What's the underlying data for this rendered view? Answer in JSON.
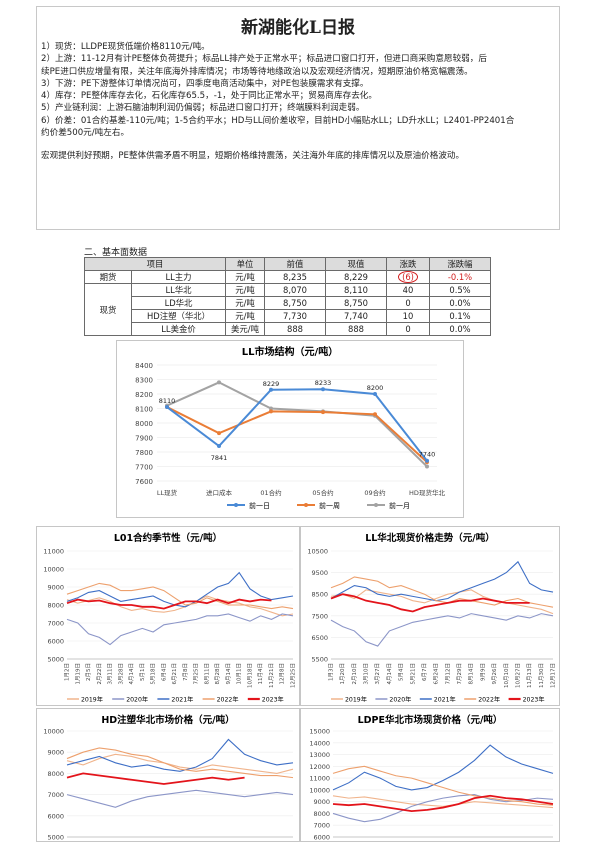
{
  "report": {
    "title": "新湖能化L日报",
    "lines": [
      "1）现货：LLDPE现货低端价格8110元/吨。",
      "2）上游：11-12月有计PE整体负荷提升；标品LL排产处于正常水平；标品进口窗口打开，但进口商采购意愿较弱，后",
      "续PE进口供应增量有限，关注年底海外排库情况；市场等待地缘政治以及宏观经济情况，短期原油价格宽幅震荡。",
      "3）下游：PE下游整体订单情况尚可，四季度电商活动集中，对PE包装膜需求有支撑。",
      "4）库存：PE整体库存去化，石化库存65.5，-1，处于同比正常水平；贸易商库存去化。",
      "5）产业链利润：上游石脑油制利润仍偏弱；标品进口窗口打开；终端膜料利润走弱。",
      "6）价差：01合约基差-110元/吨；1-5合约平水；HD与LL间价差收窄，目前HD小幅贴水LL；LD升水LL；L2401-PP2401合",
      "约价差500元/吨左右。"
    ],
    "summary": "宏观提供利好预期，PE整体供需矛盾不明显，短期价格维持震荡，关注海外年底的排库情况以及原油价格波动。"
  },
  "basic": {
    "section_title": "二、基本面数据",
    "headers": [
      "项目",
      "单位",
      "前值",
      "现值",
      "涨跌",
      "涨跌幅"
    ],
    "futures_label": "期货",
    "spot_label": "现货",
    "rows": [
      {
        "item": "LL主力",
        "unit": "元/吨",
        "prev": "8,235",
        "cur": "8,229",
        "chg": "(6)",
        "pct": "-0.1%"
      },
      {
        "item": "LL华北",
        "unit": "元/吨",
        "prev": "8,070",
        "cur": "8,110",
        "chg": "40",
        "pct": "0.5%"
      },
      {
        "item": "LD华北",
        "unit": "元/吨",
        "prev": "8,750",
        "cur": "8,750",
        "chg": "0",
        "pct": "0.0%"
      },
      {
        "item": "HD注塑（华北）",
        "unit": "元/吨",
        "prev": "7,730",
        "cur": "7,740",
        "chg": "10",
        "pct": "0.1%"
      },
      {
        "item": "LL美金价",
        "unit": "美元/吨",
        "prev": "888",
        "cur": "888",
        "chg": "0",
        "pct": "0.0%"
      }
    ]
  },
  "colors": {
    "blue": "#4a8ad6",
    "orange": "#ea7d36",
    "gray": "#a3a3a3",
    "red": "#e3141b",
    "s2019": "#f0b48c",
    "s2020": "#8c96c8",
    "s2021": "#3e6fc6",
    "s2022": "#eda06d",
    "s2023": "#e3141b"
  },
  "chart_data": [
    {
      "type": "line",
      "title": "LL市场结构（元/吨）",
      "categories": [
        "LL现货",
        "进口成本",
        "01合约",
        "05合约",
        "09合约",
        "HD现货华北"
      ],
      "ylim": [
        7600,
        8400
      ],
      "yticks": [
        "8400",
        "8300",
        "8200",
        "8100",
        "8000",
        "7900",
        "7800",
        "7700",
        "7600"
      ],
      "series": [
        {
          "name": "前一日",
          "values": [
            8110,
            7841,
            8229,
            8233,
            8200,
            7740
          ]
        },
        {
          "name": "前一周",
          "values": [
            8110,
            7930,
            8080,
            8075,
            8060,
            7730
          ]
        },
        {
          "name": "前一月",
          "values": [
            8120,
            8280,
            8100,
            8080,
            8050,
            7700
          ]
        }
      ],
      "labels": [
        "8110",
        "7841",
        "8229",
        "8233",
        "8200",
        "7740"
      ],
      "legend": "bottom"
    },
    {
      "type": "line",
      "title": "L01合约季节性（元/吨）",
      "ylim": [
        5000,
        11000
      ],
      "yticks": [
        "11000",
        "10000",
        "9000",
        "8000",
        "7000",
        "6000",
        "5000"
      ],
      "xticks": [
        "1月2日",
        "1月19日",
        "2月5日",
        "2月22日",
        "3月11日",
        "3月28日",
        "4月14日",
        "5月1日",
        "5月18日",
        "6月4日",
        "6月21日",
        "7月8日",
        "7月25日",
        "8月11日",
        "8月28日",
        "9月14日",
        "10月1日",
        "10月18日",
        "11月4日",
        "11月21日",
        "12月8日",
        "12月25日"
      ],
      "series": [
        {
          "name": "2019年",
          "values": [
            8300,
            8100,
            8250,
            8400,
            8200,
            7900,
            7700,
            7800,
            7650,
            7600,
            7700,
            7900,
            8200,
            8500,
            8300,
            8200,
            8100,
            7900,
            7800,
            7600,
            7400,
            7500
          ]
        },
        {
          "name": "2020年",
          "values": [
            7200,
            7000,
            6400,
            6200,
            5800,
            6300,
            6500,
            6700,
            6500,
            6900,
            7000,
            7100,
            7200,
            7400,
            7400,
            7500,
            7300,
            7100,
            7400,
            7200,
            7500,
            7400
          ]
        },
        {
          "name": "2021年",
          "values": [
            8200,
            8400,
            8700,
            8800,
            8500,
            8200,
            8300,
            8400,
            8500,
            8200,
            8000,
            7900,
            8200,
            8600,
            9000,
            9200,
            9800,
            8900,
            8500,
            8300,
            8400,
            8500
          ]
        },
        {
          "name": "2022年",
          "values": [
            8600,
            8800,
            9000,
            9200,
            9100,
            8800,
            8800,
            8900,
            9000,
            8800,
            8400,
            8000,
            8100,
            8400,
            8200,
            8000,
            8000,
            8000,
            7900,
            7800,
            7900,
            7800
          ]
        },
        {
          "name": "2023年",
          "values": [
            8100,
            8300,
            8200,
            8250,
            8100,
            8000,
            8000,
            7900,
            7900,
            7800,
            8000,
            8200,
            8200,
            8100,
            8300,
            8100,
            8300,
            8200,
            8300,
            8250
          ]
        }
      ],
      "legend": "bottom"
    },
    {
      "type": "line",
      "title": "LL华北现货价格走势（元/吨）",
      "ylim": [
        5500,
        10500
      ],
      "yticks": [
        "10500",
        "9500",
        "8500",
        "7500",
        "6500",
        "5500"
      ],
      "xticks": [
        "1月3日",
        "1月20日",
        "2月10日",
        "3月10日",
        "3月27日",
        "4月14日",
        "5月4日",
        "5月21日",
        "6月7日",
        "6月24日",
        "7月12日",
        "7月29日",
        "8月14日",
        "9月9日",
        "9月26日",
        "10月10日",
        "10月27日",
        "11月13日",
        "11月30日",
        "12月17日"
      ],
      "series": [
        {
          "name": "2019年",
          "values": [
            8400,
            8500,
            8300,
            8700,
            8600,
            8500,
            8400,
            8200,
            8100,
            8300,
            8500,
            8600,
            8700,
            8400,
            8200,
            8100,
            8000,
            7900,
            7800,
            7600
          ]
        },
        {
          "name": "2020年",
          "values": [
            7300,
            7000,
            6800,
            6300,
            6100,
            6800,
            7000,
            7200,
            7300,
            7400,
            7500,
            7400,
            7600,
            7500,
            7400,
            7300,
            7500,
            7400,
            7600,
            7500
          ]
        },
        {
          "name": "2021年",
          "values": [
            8300,
            8600,
            8900,
            8800,
            8500,
            8400,
            8500,
            8400,
            8300,
            8200,
            8300,
            8600,
            8800,
            9000,
            9200,
            9500,
            10000,
            9000,
            8700,
            8600
          ]
        },
        {
          "name": "2022年",
          "values": [
            8800,
            9000,
            9300,
            9200,
            9100,
            8800,
            8900,
            8700,
            8500,
            8200,
            8100,
            8300,
            8200,
            8100,
            8000,
            8200,
            8300,
            8100,
            8000,
            7900
          ]
        },
        {
          "name": "2023年",
          "values": [
            8300,
            8500,
            8400,
            8200,
            8100,
            8000,
            7800,
            7700,
            7900,
            8000,
            8100,
            8200,
            8200,
            8300,
            8200,
            8100,
            8100,
            8100
          ]
        }
      ],
      "legend": "bottom"
    },
    {
      "type": "line",
      "title": "HD注塑华北市场价格（元/吨）",
      "ylim": [
        5000,
        10000
      ],
      "yticks": [
        "10000",
        "9000",
        "8000",
        "7000",
        "6000",
        "5000"
      ],
      "series": [
        {
          "name": "2019年",
          "values": [
            8600,
            8400,
            8700,
            8900,
            8800,
            8600,
            8500,
            8300,
            8200,
            8400,
            8300,
            8200,
            8100,
            8000,
            8200
          ]
        },
        {
          "name": "2020年",
          "values": [
            7000,
            6800,
            6600,
            6400,
            6700,
            6900,
            7000,
            7100,
            7200,
            7100,
            7000,
            6900,
            7000,
            7100,
            7000
          ]
        },
        {
          "name": "2021年",
          "values": [
            8400,
            8600,
            8800,
            8500,
            8300,
            8400,
            8200,
            8100,
            8300,
            8700,
            9600,
            8900,
            8600,
            8400,
            8500
          ]
        },
        {
          "name": "2022年",
          "values": [
            8700,
            9000,
            9200,
            9100,
            8900,
            8800,
            8500,
            8200,
            8100,
            8200,
            8100,
            8000,
            7900,
            7900,
            7800
          ]
        },
        {
          "name": "2023年",
          "values": [
            7800,
            8000,
            7900,
            7800,
            7700,
            7600,
            7500,
            7600,
            7700,
            7800,
            7700,
            7800
          ]
        }
      ],
      "legend": "bottom"
    },
    {
      "type": "line",
      "title": "LDPE华北市场现货价格（元/吨）",
      "ylim": [
        6000,
        15000
      ],
      "yticks": [
        "15000",
        "14000",
        "13000",
        "12000",
        "11000",
        "10000",
        "9000",
        "8000",
        "7000",
        "6000"
      ],
      "series": [
        {
          "name": "2019年",
          "values": [
            9500,
            9300,
            9400,
            9200,
            9000,
            8800,
            8700,
            8600,
            8800,
            9000,
            8900,
            8800,
            8700,
            8600,
            8500
          ]
        },
        {
          "name": "2020年",
          "values": [
            8000,
            7600,
            7300,
            7500,
            8000,
            8600,
            9000,
            9300,
            9500,
            9600,
            9200,
            9000,
            9100,
            9300,
            9200
          ]
        },
        {
          "name": "2021年",
          "values": [
            10000,
            10600,
            11500,
            11000,
            10300,
            10000,
            10200,
            10800,
            11500,
            12500,
            13800,
            12800,
            12200,
            11800,
            11400
          ]
        },
        {
          "name": "2022年",
          "values": [
            11400,
            11800,
            12000,
            11600,
            11200,
            11000,
            10600,
            10200,
            9800,
            9500,
            9300,
            9100,
            9000,
            8800,
            8700
          ]
        },
        {
          "name": "2023年",
          "values": [
            8800,
            8700,
            8800,
            8600,
            8400,
            8200,
            8300,
            8500,
            8800,
            9300,
            9500,
            9300,
            9200,
            9000,
            8800
          ]
        }
      ],
      "legend": "bottom"
    }
  ]
}
